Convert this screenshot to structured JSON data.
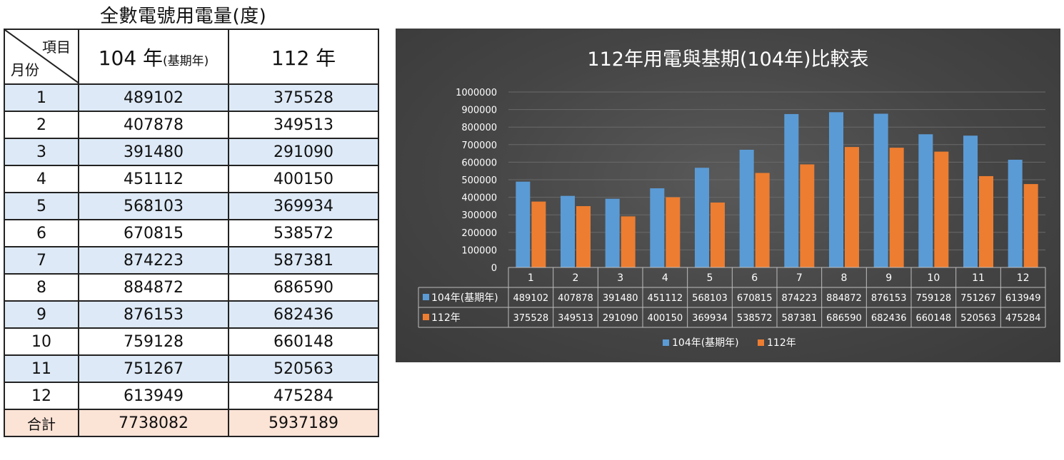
{
  "table": {
    "title": "全數電號用電量(度)",
    "corner_top": "項目",
    "corner_bottom": "月份",
    "col1_main": "104 年",
    "col1_sub": "(基期年)",
    "col2": "112 年",
    "rows": [
      {
        "month": "1",
        "v104": "489102",
        "v112": "375528"
      },
      {
        "month": "2",
        "v104": "407878",
        "v112": "349513"
      },
      {
        "month": "3",
        "v104": "391480",
        "v112": "291090"
      },
      {
        "month": "4",
        "v104": "451112",
        "v112": "400150"
      },
      {
        "month": "5",
        "v104": "568103",
        "v112": "369934"
      },
      {
        "month": "6",
        "v104": "670815",
        "v112": "538572"
      },
      {
        "month": "7",
        "v104": "874223",
        "v112": "587381"
      },
      {
        "month": "8",
        "v104": "884872",
        "v112": "686590"
      },
      {
        "month": "9",
        "v104": "876153",
        "v112": "682436"
      },
      {
        "month": "10",
        "v104": "759128",
        "v112": "660148"
      },
      {
        "month": "11",
        "v104": "751267",
        "v112": "520563"
      },
      {
        "month": "12",
        "v104": "613949",
        "v112": "475284"
      }
    ],
    "total_label": "合計",
    "total_104": "7738082",
    "total_112": "5937189"
  },
  "chart_data": {
    "type": "bar",
    "title": "112年用電與基期(104年)比較表",
    "categories": [
      "1",
      "2",
      "3",
      "4",
      "5",
      "6",
      "7",
      "8",
      "9",
      "10",
      "11",
      "12"
    ],
    "series": [
      {
        "name": "104年(基期年)",
        "color": "#5b9bd5",
        "values": [
          489102,
          407878,
          391480,
          451112,
          568103,
          670815,
          874223,
          884872,
          876153,
          759128,
          751267,
          613949
        ]
      },
      {
        "name": "112年",
        "color": "#ed7d31",
        "values": [
          375528,
          349513,
          291090,
          400150,
          369934,
          538572,
          587381,
          686590,
          682436,
          660148,
          520563,
          475284
        ]
      }
    ],
    "ylim": [
      0,
      1000000
    ],
    "yticks": [
      "0",
      "100000",
      "200000",
      "300000",
      "400000",
      "500000",
      "600000",
      "700000",
      "800000",
      "900000",
      "1000000"
    ],
    "grid": true,
    "legend": "bottom",
    "data_table": true
  }
}
